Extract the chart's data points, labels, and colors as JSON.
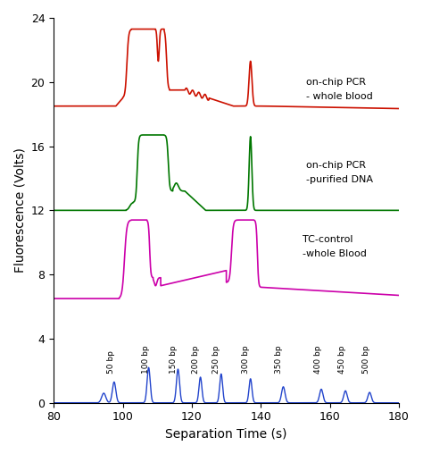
{
  "xlim": [
    80,
    180
  ],
  "ylim": [
    0,
    24
  ],
  "yticks": [
    0,
    4,
    8,
    12,
    16,
    20,
    24
  ],
  "xticks": [
    80,
    100,
    120,
    140,
    160,
    180
  ],
  "xlabel": "Separation Time (s)",
  "ylabel": "Fluorescence (Volts)",
  "red_color": "#cc1100",
  "green_color": "#007700",
  "magenta_color": "#cc00aa",
  "blue_color": "#2244cc",
  "bg_color": "#ffffff",
  "label_red": [
    "on-chip PCR",
    "- whole blood"
  ],
  "label_green": [
    "on-chip PCR",
    "-purified DNA"
  ],
  "label_magenta": [
    "TC-control",
    "-whole Blood"
  ],
  "bp_labels": [
    "50 bp",
    "100 bp",
    "150 bp",
    "200 bp",
    "250 bp",
    "300 bp",
    "350 bp",
    "400 bp",
    "450 bp",
    "500 bp"
  ],
  "bp_peak_times": [
    97.5,
    107.5,
    116.0,
    122.5,
    128.5,
    137.0,
    146.5,
    157.5,
    164.5,
    171.5
  ],
  "bp_heights": [
    1.3,
    2.2,
    2.1,
    1.6,
    1.8,
    1.5,
    1.0,
    0.85,
    0.75,
    0.65
  ],
  "bp_widths": [
    0.5,
    0.45,
    0.45,
    0.42,
    0.42,
    0.42,
    0.5,
    0.5,
    0.5,
    0.5
  ]
}
